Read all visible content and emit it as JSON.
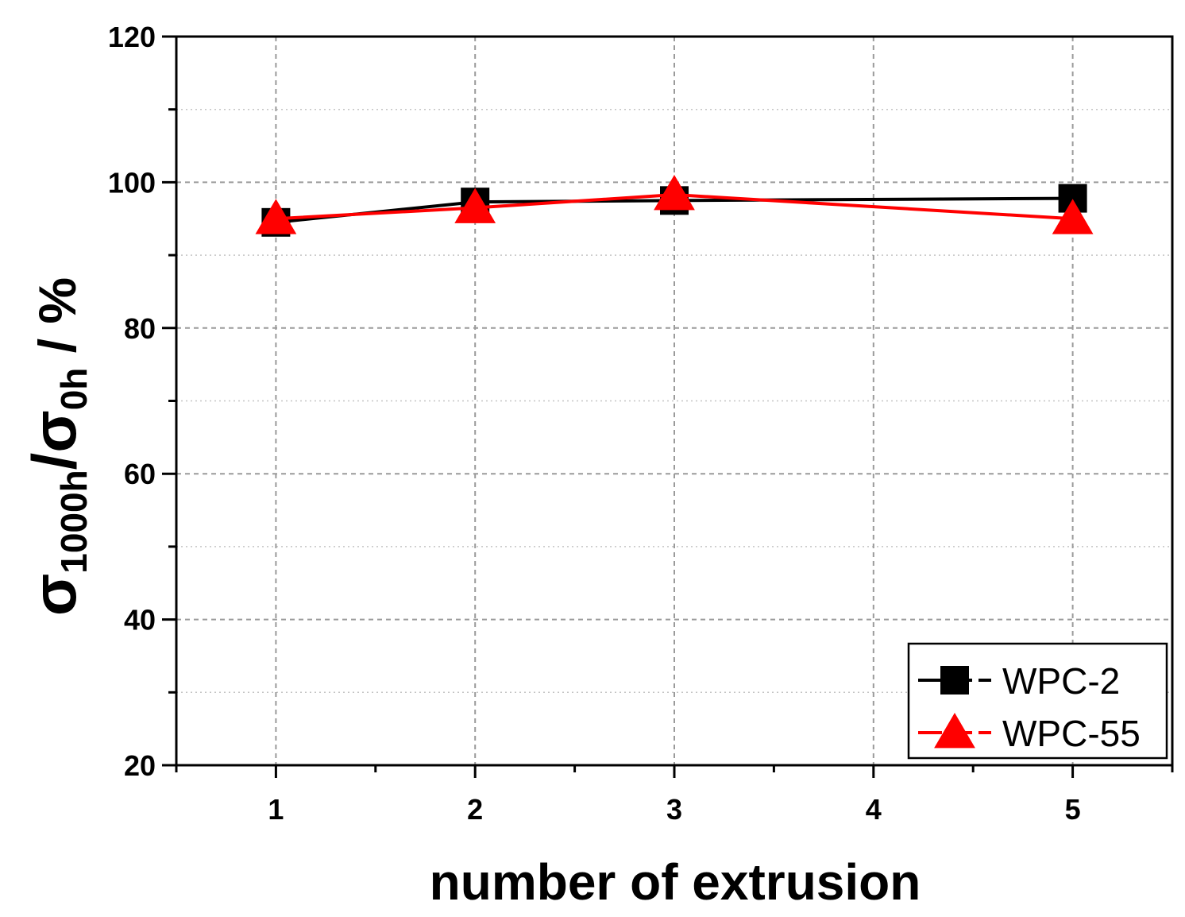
{
  "chart_data": {
    "type": "line",
    "title": "",
    "xlabel": "number of extrusion",
    "ylabel": {
      "base1": "σ",
      "sub1": "1000h",
      "sep": "/",
      "base2": "σ",
      "sub2": "0h",
      "unit": " / %"
    },
    "xlim": [
      0.5,
      5.5
    ],
    "ylim": [
      20,
      120
    ],
    "xticks": [
      1,
      2,
      3,
      4,
      5
    ],
    "yticks": [
      20,
      40,
      60,
      80,
      100,
      120
    ],
    "grid": true,
    "legend_position": "bottom-right",
    "series": [
      {
        "name": "WPC-2",
        "marker": "square",
        "color": "#000000",
        "x": [
          1,
          2,
          3,
          5
        ],
        "y": [
          94.5,
          97.3,
          97.5,
          97.8
        ]
      },
      {
        "name": "WPC-55",
        "marker": "triangle",
        "color": "#ff0000",
        "x": [
          1,
          2,
          3,
          5
        ],
        "y": [
          95.0,
          96.5,
          98.3,
          95.0
        ]
      }
    ]
  }
}
